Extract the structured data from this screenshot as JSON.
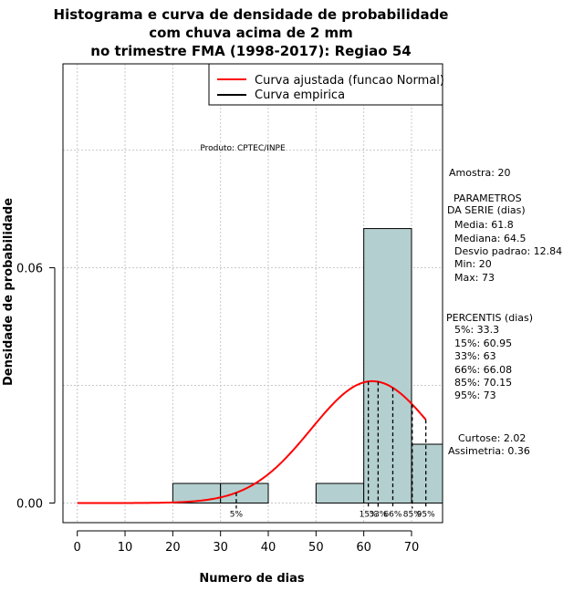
{
  "chart_data": {
    "type": "histogram",
    "title_lines": [
      "Histograma e curva de densidade de probabilidade",
      "com chuva acima de 2 mm",
      "no trimestre FMA (1998-2017): Regiao 54"
    ],
    "xlabel": "Numero de dias",
    "ylabel": "Densidade de probabilidade",
    "xlim": [
      -3,
      76.5
    ],
    "ylim": [
      -0.005,
      0.112
    ],
    "x_ticks": [
      0,
      10,
      20,
      30,
      40,
      50,
      60,
      70
    ],
    "y_ticks": [
      0.0,
      0.06
    ],
    "y_tick_labels": [
      "0.00",
      "0.06"
    ],
    "x_grid": [
      0,
      10,
      20,
      30,
      40,
      50,
      60,
      70
    ],
    "y_grid": [
      0.0,
      0.03,
      0.06,
      0.09
    ],
    "bins": [
      {
        "x0": 20,
        "x1": 30,
        "density": 0.005
      },
      {
        "x0": 30,
        "x1": 40,
        "density": 0.005
      },
      {
        "x0": 40,
        "x1": 50,
        "density": 0.0
      },
      {
        "x0": 50,
        "x1": 60,
        "density": 0.005
      },
      {
        "x0": 60,
        "x1": 70,
        "density": 0.07
      },
      {
        "x0": 70,
        "x1": 80,
        "density": 0.015
      }
    ],
    "bar_color": "#b4cfcf",
    "curve_color": "#ff0000",
    "normal_fit": {
      "mean": 61.8,
      "sd": 12.84,
      "x_from": 0,
      "x_to": 73
    },
    "legend": [
      {
        "label": "Curva ajustada (funcao Normal)",
        "color": "#ff0000"
      },
      {
        "label": "Curva empirica",
        "color": "#000000"
      }
    ],
    "percentile_lines": [
      {
        "label": "5%",
        "value": 33.3
      },
      {
        "label": "15%",
        "value": 60.95
      },
      {
        "label": "33%",
        "value": 63
      },
      {
        "label": "66%",
        "value": 66.08
      },
      {
        "label": "85%",
        "value": 70.15
      },
      {
        "label": "95%",
        "value": 73
      }
    ],
    "percentile_label_text": [
      "5%",
      "15%",
      "33%",
      "66%",
      "85%",
      "95%"
    ],
    "product_note": "Produto: CPTEC/INPE"
  },
  "stats": {
    "amostra": "Amostra: 20",
    "parametros_title_1": "PARAMETROS",
    "parametros_title_2": "DA SERIE (dias)",
    "media": "Media: 61.8",
    "mediana": "Mediana: 64.5",
    "desvio": "Desvio padrao: 12.84",
    "min": "Min: 20",
    "max": "Max: 73",
    "percentis_title": "PERCENTIS (dias)",
    "p5": "5%: 33.3",
    "p15": "15%: 60.95",
    "p33": "33%: 63",
    "p66": "66%: 66.08",
    "p85": "85%: 70.15",
    "p95": "95%: 73",
    "curtose": "Curtose: 2.02",
    "assimetria": "Assimetria: 0.36"
  }
}
